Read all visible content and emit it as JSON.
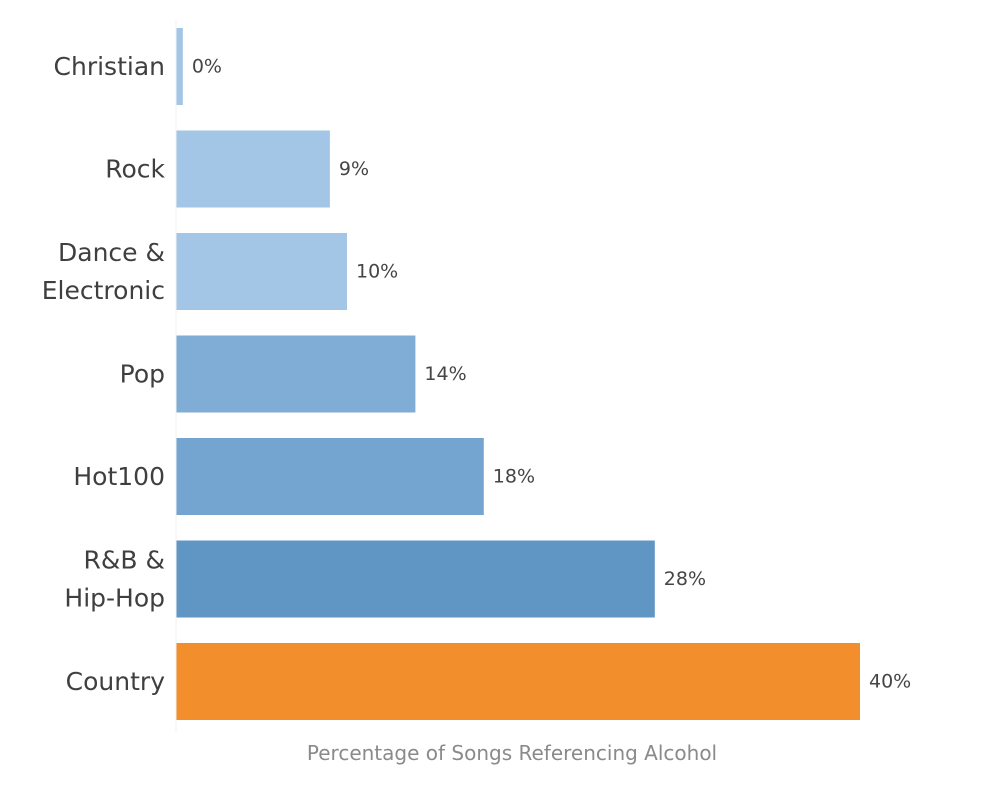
{
  "chart_data": {
    "type": "bar",
    "orientation": "horizontal",
    "categories": [
      "Christian",
      "Rock",
      "Dance & Electronic",
      "Pop",
      "Hot100",
      "R&B & Hip-Hop",
      "Country"
    ],
    "category_lines": [
      [
        "Christian"
      ],
      [
        "Rock"
      ],
      [
        "Dance &",
        "Electronic"
      ],
      [
        "Pop"
      ],
      [
        "Hot100"
      ],
      [
        "R&B &",
        "Hip-Hop"
      ],
      [
        "Country"
      ]
    ],
    "values": [
      0.4,
      9,
      10,
      14,
      18,
      28,
      40
    ],
    "value_labels": [
      "0%",
      "9%",
      "10%",
      "14%",
      "18%",
      "28%",
      "40%"
    ],
    "bar_colors": [
      "#a3c6e6",
      "#a3c6e6",
      "#a3c6e6",
      "#7fadd6",
      "#74a5d1",
      "#6096c3",
      "#f28e2b"
    ],
    "title": "",
    "xlabel": "Percentage of Songs Referencing Alcohol",
    "ylabel": "",
    "xlim": [
      0,
      40
    ],
    "grid": false,
    "legend": "none"
  }
}
